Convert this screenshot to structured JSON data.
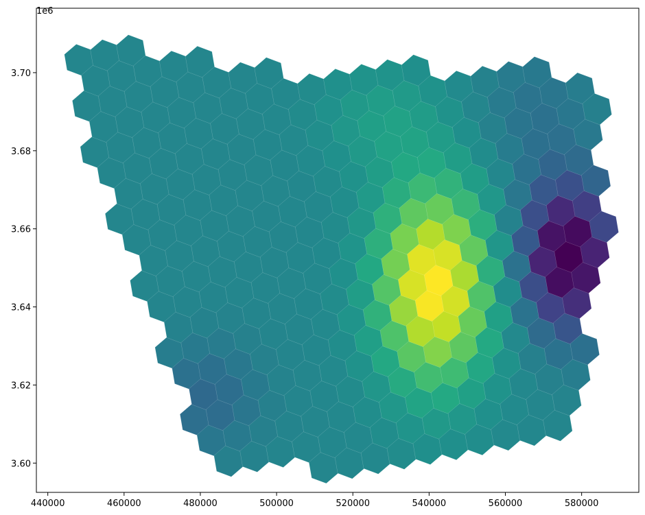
{
  "chart_data": {
    "type": "heatmap",
    "title": "",
    "xlabel": "",
    "ylabel": "",
    "y_offset_label": "1e6",
    "colormap": "viridis",
    "xlim": [
      437000,
      595000
    ],
    "ylim": [
      3592500,
      3716500
    ],
    "x_ticks": [
      440000,
      460000,
      480000,
      500000,
      520000,
      540000,
      560000,
      580000
    ],
    "x_tick_labels": [
      "440000",
      "460000",
      "480000",
      "500000",
      "520000",
      "540000",
      "560000",
      "580000"
    ],
    "y_ticks": [
      3600000,
      3620000,
      3640000,
      3660000,
      3680000,
      3700000
    ],
    "y_tick_labels": [
      "3.60",
      "3.62",
      "3.64",
      "3.66",
      "3.68",
      "3.70"
    ],
    "grid": false,
    "hex_size_units": 4000,
    "hex_rotation_deg": 10,
    "value_range": [
      0,
      1
    ],
    "hotspot_high": {
      "x": 541500,
      "y": 3645500
    },
    "hotspot_low": {
      "x": 576500,
      "y": 3653000
    },
    "region_corners": [
      {
        "x": 448000,
        "y": 3708000
      },
      {
        "x": 459000,
        "y": 3709000
      },
      {
        "x": 499000,
        "y": 3700000
      },
      {
        "x": 531500,
        "y": 3702000
      },
      {
        "x": 583000,
        "y": 3700000
      },
      {
        "x": 588000,
        "y": 3666000
      },
      {
        "x": 580000,
        "y": 3622000
      },
      {
        "x": 575000,
        "y": 3608000
      },
      {
        "x": 554000,
        "y": 3603000
      },
      {
        "x": 505000,
        "y": 3598000
      },
      {
        "x": 481000,
        "y": 3600000
      },
      {
        "x": 447000,
        "y": 3692000
      }
    ]
  }
}
